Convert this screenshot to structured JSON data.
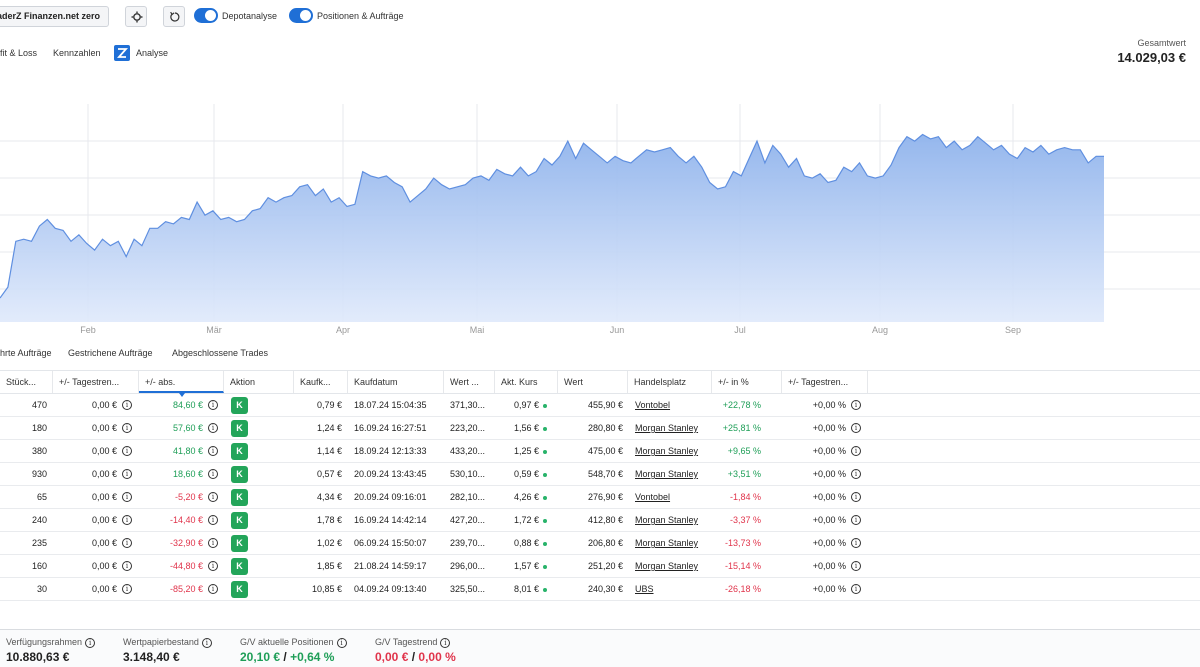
{
  "toolbar": {
    "broker": "aderZ Finanzen.net zero",
    "toggle1": "Depotanalyse",
    "toggle2": "Positionen & Aufträge",
    "accent": "#1f6fd6",
    "icons": [
      "gear-icon",
      "refresh-icon"
    ]
  },
  "analysis_tabs": [
    "fit & Loss",
    "Kennzahlen",
    "Analyse"
  ],
  "total": {
    "label": "Gesamtwert",
    "value": "14.029,03 €"
  },
  "chart_data": {
    "type": "area",
    "title": "",
    "xlabel": "",
    "ylabel": "",
    "x_ticks": [
      "Feb",
      "Mär",
      "Apr",
      "Mai",
      "Jun",
      "Jul",
      "Aug",
      "Sep"
    ],
    "y_relative": [
      0.11,
      0.16,
      0.37,
      0.38,
      0.37,
      0.44,
      0.47,
      0.43,
      0.42,
      0.37,
      0.4,
      0.36,
      0.33,
      0.38,
      0.35,
      0.37,
      0.3,
      0.38,
      0.35,
      0.43,
      0.43,
      0.46,
      0.45,
      0.48,
      0.47,
      0.55,
      0.49,
      0.51,
      0.47,
      0.48,
      0.46,
      0.47,
      0.51,
      0.52,
      0.57,
      0.55,
      0.57,
      0.58,
      0.62,
      0.63,
      0.58,
      0.61,
      0.55,
      0.57,
      0.53,
      0.54,
      0.69,
      0.67,
      0.66,
      0.67,
      0.64,
      0.62,
      0.55,
      0.58,
      0.61,
      0.66,
      0.63,
      0.61,
      0.62,
      0.63,
      0.66,
      0.67,
      0.65,
      0.7,
      0.68,
      0.67,
      0.71,
      0.67,
      0.69,
      0.75,
      0.72,
      0.76,
      0.83,
      0.75,
      0.82,
      0.79,
      0.76,
      0.73,
      0.76,
      0.74,
      0.73,
      0.76,
      0.79,
      0.78,
      0.79,
      0.8,
      0.76,
      0.73,
      0.76,
      0.71,
      0.64,
      0.61,
      0.62,
      0.69,
      0.67,
      0.75,
      0.83,
      0.73,
      0.81,
      0.77,
      0.71,
      0.75,
      0.67,
      0.66,
      0.68,
      0.64,
      0.65,
      0.71,
      0.69,
      0.73,
      0.67,
      0.66,
      0.67,
      0.72,
      0.8,
      0.85,
      0.83,
      0.86,
      0.84,
      0.85,
      0.8,
      0.83,
      0.79,
      0.81,
      0.85,
      0.82,
      0.79,
      0.81,
      0.77,
      0.75,
      0.8,
      0.78,
      0.81,
      0.77,
      0.79,
      0.8,
      0.79,
      0.79,
      0.73,
      0.76,
      0.76
    ]
  },
  "order_tabs": [
    "hrte Aufträge",
    "Gestrichene Aufträge",
    "Abgeschlossene Trades"
  ],
  "columns": [
    "Stück...",
    "+/- Tagestren...",
    "+/- abs.",
    "Aktion",
    "Kaufk...",
    "Kaufdatum",
    "Wert ...",
    "Akt. Kurs",
    "Wert",
    "Handelsplatz",
    "+/- in %",
    "+/- Tagestren..."
  ],
  "rows": [
    {
      "qty": "470",
      "day": "0,00 €",
      "abs": "84,60 €",
      "abs_sign": "pos",
      "action": "K",
      "buy": "0,79 €",
      "date": "18.07.24 15:04:35",
      "buyval": "371,30...",
      "price": "0,97 €",
      "value": "455,90 €",
      "venue": "Vontobel",
      "pct": "+22,78 %",
      "pct_sign": "pos",
      "daypct": "+0,00 %"
    },
    {
      "qty": "180",
      "day": "0,00 €",
      "abs": "57,60 €",
      "abs_sign": "pos",
      "action": "K",
      "buy": "1,24 €",
      "date": "16.09.24 16:27:51",
      "buyval": "223,20...",
      "price": "1,56 €",
      "value": "280,80 €",
      "venue": "Morgan Stanley",
      "pct": "+25,81 %",
      "pct_sign": "pos",
      "daypct": "+0,00 %"
    },
    {
      "qty": "380",
      "day": "0,00 €",
      "abs": "41,80 €",
      "abs_sign": "pos",
      "action": "K",
      "buy": "1,14 €",
      "date": "18.09.24 12:13:33",
      "buyval": "433,20...",
      "price": "1,25 €",
      "value": "475,00 €",
      "venue": "Morgan Stanley",
      "pct": "+9,65 %",
      "pct_sign": "pos",
      "daypct": "+0,00 %"
    },
    {
      "qty": "930",
      "day": "0,00 €",
      "abs": "18,60 €",
      "abs_sign": "pos",
      "action": "K",
      "buy": "0,57 €",
      "date": "20.09.24 13:43:45",
      "buyval": "530,10...",
      "price": "0,59 €",
      "value": "548,70 €",
      "venue": "Morgan Stanley",
      "pct": "+3,51 %",
      "pct_sign": "pos",
      "daypct": "+0,00 %"
    },
    {
      "qty": "65",
      "day": "0,00 €",
      "abs": "-5,20 €",
      "abs_sign": "neg",
      "action": "K",
      "buy": "4,34 €",
      "date": "20.09.24 09:16:01",
      "buyval": "282,10...",
      "price": "4,26 €",
      "value": "276,90 €",
      "venue": "Vontobel",
      "pct": "-1,84 %",
      "pct_sign": "neg",
      "daypct": "+0,00 %"
    },
    {
      "qty": "240",
      "day": "0,00 €",
      "abs": "-14,40 €",
      "abs_sign": "neg",
      "action": "K",
      "buy": "1,78 €",
      "date": "16.09.24 14:42:14",
      "buyval": "427,20...",
      "price": "1,72 €",
      "value": "412,80 €",
      "venue": "Morgan Stanley",
      "pct": "-3,37 %",
      "pct_sign": "neg",
      "daypct": "+0,00 %"
    },
    {
      "qty": "235",
      "day": "0,00 €",
      "abs": "-32,90 €",
      "abs_sign": "neg",
      "action": "K",
      "buy": "1,02 €",
      "date": "06.09.24 15:50:07",
      "buyval": "239,70...",
      "price": "0,88 €",
      "value": "206,80 €",
      "venue": "Morgan Stanley",
      "pct": "-13,73 %",
      "pct_sign": "neg",
      "daypct": "+0,00 %"
    },
    {
      "qty": "160",
      "day": "0,00 €",
      "abs": "-44,80 €",
      "abs_sign": "neg",
      "action": "K",
      "buy": "1,85 €",
      "date": "21.08.24 14:59:17",
      "buyval": "296,00...",
      "price": "1,57 €",
      "value": "251,20 €",
      "venue": "Morgan Stanley",
      "pct": "-15,14 %",
      "pct_sign": "neg",
      "daypct": "+0,00 %"
    },
    {
      "qty": "30",
      "day": "0,00 €",
      "abs": "-85,20 €",
      "abs_sign": "neg",
      "action": "K",
      "buy": "10,85 €",
      "date": "04.09.24 09:13:40",
      "buyval": "325,50...",
      "price": "8,01 €",
      "value": "240,30 €",
      "venue": "UBS",
      "pct": "-26,18 %",
      "pct_sign": "neg",
      "daypct": "+0,00 %"
    }
  ],
  "footer": {
    "avail_label": "Verfügungsrahmen",
    "avail_value": "10.880,63 €",
    "holdings_label": "Wertpapierbestand",
    "holdings_value": "3.148,40 €",
    "pl_label": "G/V aktuelle Positionen",
    "pl_value_abs": "20,10 €",
    "pl_sep": "/",
    "pl_value_pct": "+0,64 %",
    "trend_label": "G/V Tagestrend",
    "trend_value_abs": "0,00 €",
    "trend_sep": "/",
    "trend_value_pct": "0,00 %"
  },
  "colors": {
    "positive": "#1e9e57",
    "negative": "#e0344b",
    "action": "#23a55a",
    "area_top": "#8fb3ec",
    "area_line": "#5f8fe0"
  }
}
